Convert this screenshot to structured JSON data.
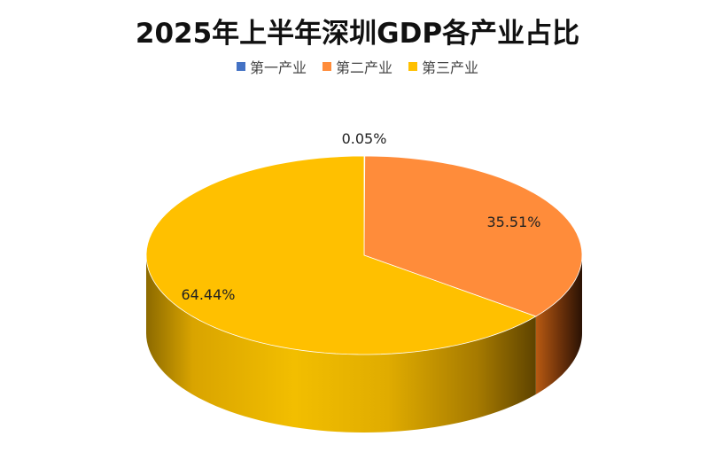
{
  "chart_data": {
    "type": "pie",
    "title": "2025年上半年深圳GDP各产业占比",
    "legend_position": "top",
    "categories": [
      "第一产业",
      "第二产业",
      "第三产业"
    ],
    "values": [
      0.05,
      35.51,
      64.44
    ],
    "labels": [
      "0.05%",
      "35.51%",
      "64.44%"
    ],
    "colors": [
      "#4472C4",
      "#FF8C3A",
      "#FFC000"
    ],
    "style": "3d"
  }
}
